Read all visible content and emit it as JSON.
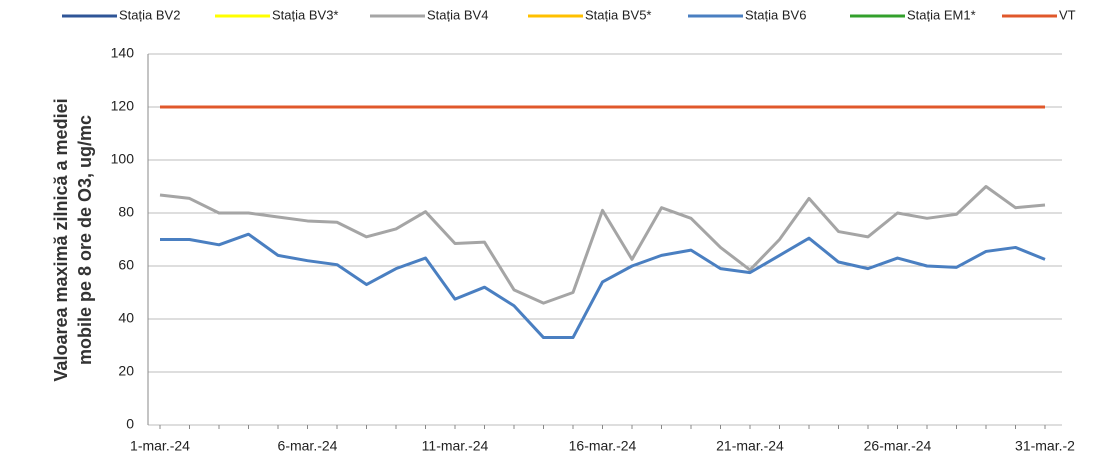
{
  "chart_data": {
    "type": "line",
    "ylabel": [
      "Valoarea maximă zilnică a mediei",
      "mobile pe 8 ore de O3, ug/mc"
    ],
    "categories": [
      "1-mar.-24",
      null,
      null,
      null,
      null,
      "6-mar.-24",
      null,
      null,
      null,
      null,
      "11-mar.-24",
      null,
      null,
      null,
      null,
      "16-mar.-24",
      null,
      null,
      null,
      null,
      "21-mar.-24",
      null,
      null,
      null,
      null,
      "26-mar.-24",
      null,
      null,
      null,
      null,
      "31-mar.-2"
    ],
    "series": [
      {
        "name": "Stația BV2",
        "color": "#2f5597",
        "values": [
          null,
          null,
          null,
          null,
          null,
          null,
          null,
          null,
          null,
          null,
          null,
          null,
          null,
          null,
          null,
          null,
          null,
          null,
          null,
          null,
          null,
          null,
          null,
          null,
          null,
          null,
          null,
          null,
          null,
          null,
          null
        ]
      },
      {
        "name": "Stația BV3*",
        "color": "#ffff00",
        "values": [
          null,
          null,
          null,
          null,
          null,
          null,
          null,
          null,
          null,
          null,
          null,
          null,
          null,
          null,
          null,
          null,
          null,
          null,
          null,
          null,
          null,
          null,
          null,
          null,
          null,
          null,
          null,
          null,
          null,
          null,
          null
        ]
      },
      {
        "name": "Stația BV4",
        "color": "#a5a5a5",
        "values": [
          86.8,
          85.5,
          80,
          80,
          78.5,
          77,
          76.5,
          71,
          74,
          80.5,
          68.5,
          69,
          51,
          46,
          50,
          81,
          62.5,
          82,
          78,
          67,
          58.5,
          70,
          85.5,
          73,
          71,
          80,
          78,
          79.5,
          90,
          82,
          83
        ]
      },
      {
        "name": "Stația BV5*",
        "color": "#ffc000",
        "values": [
          null,
          null,
          null,
          null,
          null,
          null,
          null,
          null,
          null,
          null,
          null,
          null,
          null,
          null,
          null,
          null,
          null,
          null,
          null,
          null,
          null,
          null,
          null,
          null,
          null,
          null,
          null,
          null,
          null,
          null,
          null
        ]
      },
      {
        "name": "Stația BV6",
        "color": "#4a7fc1",
        "values": [
          70,
          70,
          68,
          72,
          64,
          62,
          60.5,
          53,
          59,
          63,
          47.5,
          52,
          45,
          33,
          33,
          54,
          60,
          64,
          66,
          59,
          57.5,
          64,
          70.5,
          61.5,
          59,
          63,
          60,
          59.5,
          65.5,
          67,
          62.5
        ]
      },
      {
        "name": "Stația EM1*",
        "color": "#33a02c",
        "values": [
          null,
          null,
          null,
          null,
          null,
          null,
          null,
          null,
          null,
          null,
          null,
          null,
          null,
          null,
          null,
          null,
          null,
          null,
          null,
          null,
          null,
          null,
          null,
          null,
          null,
          null,
          null,
          null,
          null,
          null,
          null
        ]
      },
      {
        "name": "VT",
        "color": "#e0582b",
        "values": [
          120,
          120,
          120,
          120,
          120,
          120,
          120,
          120,
          120,
          120,
          120,
          120,
          120,
          120,
          120,
          120,
          120,
          120,
          120,
          120,
          120,
          120,
          120,
          120,
          120,
          120,
          120,
          120,
          120,
          120,
          120
        ]
      }
    ],
    "ylim": [
      0,
      140
    ],
    "yticks": [
      0,
      20,
      40,
      60,
      80,
      100,
      120,
      140
    ],
    "grid": true
  }
}
